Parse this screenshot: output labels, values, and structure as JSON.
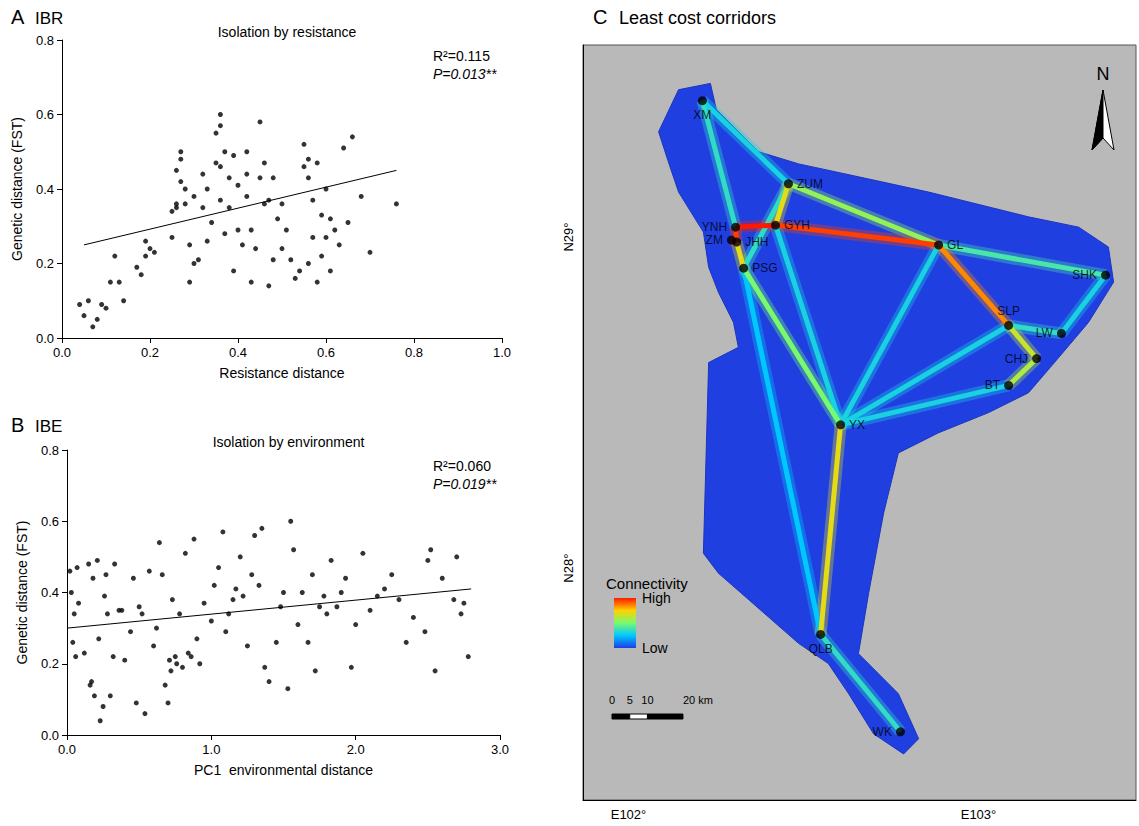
{
  "chart_data": [
    {
      "type": "scatter",
      "letter": "A",
      "heading": "IBR",
      "title": "Isolation by resistance",
      "x_label": "Resistance distance",
      "y_label": "Genetic distance (FST)",
      "color": "#000000",
      "marker": "circle",
      "annotations": [
        "R²=0.115",
        "P=0.013**"
      ],
      "xlim": [
        0,
        1
      ],
      "ylim": [
        0,
        0.8
      ],
      "xticks": [
        {
          "value": 0,
          "label": "0.0"
        },
        0.2,
        0.4,
        0.6,
        0.8,
        {
          "value": 1,
          "label": "1.0"
        }
      ],
      "yticks": [
        {
          "value": 0,
          "label": "0.0"
        },
        0.2,
        0.4,
        0.6,
        0.8
      ],
      "fit": {
        "x": [
          0.05,
          0.76
        ],
        "values": [
          0.25,
          0.45
        ]
      },
      "x": [
        0.04,
        0.05,
        0.07,
        0.06,
        0.08,
        0.09,
        0.1,
        0.11,
        0.12,
        0.13,
        0.14,
        0.17,
        0.18,
        0.19,
        0.2,
        0.21,
        0.19,
        0.25,
        0.25,
        0.26,
        0.26,
        0.27,
        0.27,
        0.27,
        0.28,
        0.28,
        0.29,
        0.29,
        0.3,
        0.3,
        0.31,
        0.32,
        0.32,
        0.33,
        0.34,
        0.35,
        0.35,
        0.36,
        0.36,
        0.36,
        0.37,
        0.37,
        0.38,
        0.38,
        0.39,
        0.4,
        0.4,
        0.41,
        0.42,
        0.42,
        0.43,
        0.43,
        0.44,
        0.45,
        0.45,
        0.46,
        0.46,
        0.47,
        0.47,
        0.48,
        0.48,
        0.49,
        0.5,
        0.5,
        0.51,
        0.52,
        0.53,
        0.54,
        0.55,
        0.55,
        0.56,
        0.56,
        0.56,
        0.57,
        0.57,
        0.58,
        0.58,
        0.59,
        0.59,
        0.6,
        0.6,
        0.61,
        0.61,
        0.62,
        0.63,
        0.64,
        0.65,
        0.66,
        0.68,
        0.7,
        0.76,
        0.42,
        0.33,
        0.39,
        0.26,
        0.36
      ],
      "values": [
        0.09,
        0.06,
        0.03,
        0.1,
        0.05,
        0.09,
        0.08,
        0.15,
        0.22,
        0.15,
        0.1,
        0.19,
        0.17,
        0.22,
        0.24,
        0.23,
        0.26,
        0.27,
        0.34,
        0.36,
        0.45,
        0.5,
        0.48,
        0.42,
        0.4,
        0.36,
        0.25,
        0.15,
        0.2,
        0.38,
        0.21,
        0.35,
        0.44,
        0.4,
        0.31,
        0.47,
        0.55,
        0.6,
        0.57,
        0.46,
        0.28,
        0.5,
        0.43,
        0.35,
        0.18,
        0.29,
        0.41,
        0.25,
        0.5,
        0.38,
        0.15,
        0.29,
        0.24,
        0.43,
        0.58,
        0.47,
        0.36,
        0.37,
        0.14,
        0.43,
        0.21,
        0.32,
        0.24,
        0.36,
        0.29,
        0.21,
        0.16,
        0.18,
        0.46,
        0.52,
        0.48,
        0.43,
        0.2,
        0.37,
        0.27,
        0.47,
        0.15,
        0.33,
        0.22,
        0.4,
        0.27,
        0.32,
        0.18,
        0.29,
        0.25,
        0.51,
        0.31,
        0.54,
        0.38,
        0.23,
        0.36,
        0.44,
        0.26,
        0.49,
        0.35,
        0.37
      ]
    },
    {
      "type": "scatter",
      "letter": "B",
      "heading": "IBE",
      "title": "Isolation by environment",
      "x_label": "PC1  environmental distance",
      "y_label": "Genetic distance (FST)",
      "color": "#000000",
      "marker": "circle",
      "annotations": [
        "R²=0.060",
        "P=0.019**"
      ],
      "xlim": [
        0,
        3
      ],
      "ylim": [
        0,
        0.8
      ],
      "xticks": [
        {
          "value": 0,
          "label": "0.0"
        },
        {
          "value": 1,
          "label": "1.0"
        },
        {
          "value": 2,
          "label": "2.0"
        },
        {
          "value": 3,
          "label": "3.0"
        }
      ],
      "yticks": [
        {
          "value": 0,
          "label": "0.0"
        },
        0.2,
        0.4,
        0.6,
        0.8
      ],
      "fit": {
        "x": [
          0,
          2.8
        ],
        "values": [
          0.3,
          0.41
        ]
      },
      "x": [
        0.02,
        0.03,
        0.04,
        0.05,
        0.06,
        0.07,
        0.08,
        0.12,
        0.15,
        0.16,
        0.17,
        0.18,
        0.19,
        0.21,
        0.22,
        0.23,
        0.25,
        0.26,
        0.27,
        0.28,
        0.3,
        0.32,
        0.33,
        0.36,
        0.38,
        0.4,
        0.44,
        0.46,
        0.48,
        0.5,
        0.52,
        0.54,
        0.57,
        0.6,
        0.62,
        0.64,
        0.66,
        0.68,
        0.7,
        0.71,
        0.72,
        0.73,
        0.75,
        0.76,
        0.78,
        0.8,
        0.82,
        0.84,
        0.86,
        0.88,
        0.9,
        0.92,
        0.95,
        1.0,
        1.02,
        1.05,
        1.08,
        1.1,
        1.12,
        1.15,
        1.17,
        1.2,
        1.22,
        1.25,
        1.28,
        1.3,
        1.33,
        1.35,
        1.37,
        1.4,
        1.45,
        1.48,
        1.5,
        1.53,
        1.55,
        1.57,
        1.6,
        1.63,
        1.67,
        1.7,
        1.72,
        1.75,
        1.78,
        1.8,
        1.83,
        1.87,
        1.9,
        1.93,
        1.97,
        2.0,
        2.05,
        2.1,
        2.15,
        2.2,
        2.25,
        2.3,
        2.35,
        2.4,
        2.48,
        2.5,
        2.52,
        2.55,
        2.6,
        2.68,
        2.7,
        2.73,
        2.75,
        2.78
      ],
      "values": [
        0.46,
        0.4,
        0.26,
        0.34,
        0.22,
        0.47,
        0.37,
        0.23,
        0.48,
        0.14,
        0.15,
        0.44,
        0.11,
        0.49,
        0.27,
        0.04,
        0.08,
        0.39,
        0.45,
        0.34,
        0.11,
        0.22,
        0.48,
        0.35,
        0.35,
        0.21,
        0.29,
        0.44,
        0.09,
        0.36,
        0.34,
        0.06,
        0.46,
        0.25,
        0.3,
        0.54,
        0.45,
        0.14,
        0.09,
        0.21,
        0.18,
        0.38,
        0.22,
        0.2,
        0.34,
        0.19,
        0.51,
        0.23,
        0.22,
        0.55,
        0.27,
        0.2,
        0.37,
        0.32,
        0.42,
        0.47,
        0.57,
        0.29,
        0.34,
        0.38,
        0.41,
        0.5,
        0.39,
        0.25,
        0.45,
        0.56,
        0.42,
        0.58,
        0.19,
        0.15,
        0.26,
        0.36,
        0.4,
        0.13,
        0.6,
        0.52,
        0.31,
        0.4,
        0.26,
        0.45,
        0.18,
        0.36,
        0.39,
        0.34,
        0.49,
        0.36,
        0.4,
        0.44,
        0.19,
        0.31,
        0.51,
        0.35,
        0.39,
        0.41,
        0.45,
        0.38,
        0.26,
        0.33,
        0.29,
        0.49,
        0.52,
        0.18,
        0.44,
        0.38,
        0.5,
        0.34,
        0.37,
        0.22
      ]
    },
    {
      "type": "map",
      "letter": "C",
      "title": "Least cost corridors",
      "xlim": [
        101.87,
        103.45
      ],
      "ylim": [
        27.3,
        29.58
      ],
      "xticks": [
        {
          "value": 102,
          "label": "E102°"
        },
        {
          "value": 103,
          "label": "E103°"
        }
      ],
      "yticks": [
        {
          "value": 28,
          "label": "N28°"
        },
        {
          "value": 29,
          "label": "N29°"
        }
      ],
      "north_label": "N",
      "scale_bar": {
        "ticks": [
          0,
          5,
          10,
          {
            "value": 20,
            "label": "20 km"
          }
        ]
      },
      "colorbar": {
        "title": "Connectivity",
        "range": [
          0,
          1
        ],
        "ticks": [
          {
            "value": 1,
            "label": "High"
          },
          {
            "value": 0,
            "label": "Low"
          }
        ]
      },
      "sites": [
        {
          "name": "XM",
          "lon": 102.211,
          "lat": 29.412
        },
        {
          "name": "ZUM",
          "lon": 102.457,
          "lat": 29.161
        },
        {
          "name": "YNH",
          "lon": 102.306,
          "lat": 29.03
        },
        {
          "name": "ZM",
          "lon": 102.294,
          "lat": 28.991
        },
        {
          "name": "JHH",
          "lon": 102.309,
          "lat": 28.985
        },
        {
          "name": "GYH",
          "lon": 102.42,
          "lat": 29.036
        },
        {
          "name": "PSG",
          "lon": 102.329,
          "lat": 28.906
        },
        {
          "name": "GL",
          "lon": 102.886,
          "lat": 28.976
        },
        {
          "name": "SHK",
          "lon": 103.363,
          "lat": 28.885
        },
        {
          "name": "SLP",
          "lon": 103.086,
          "lat": 28.733
        },
        {
          "name": "LW",
          "lon": 103.237,
          "lat": 28.709
        },
        {
          "name": "CHJ",
          "lon": 103.166,
          "lat": 28.633
        },
        {
          "name": "BT",
          "lon": 103.086,
          "lat": 28.552
        },
        {
          "name": "YX",
          "lon": 102.606,
          "lat": 28.433
        },
        {
          "name": "QLB",
          "lon": 102.549,
          "lat": 27.8
        },
        {
          "name": "WK",
          "lon": 102.777,
          "lat": 27.506
        }
      ],
      "corridors": [
        {
          "from": "PSG",
          "to": "QLB",
          "connectivity": 0.25
        },
        {
          "from": "ZUM",
          "to": "XM",
          "connectivity": 0.3
        },
        {
          "from": "LW",
          "to": "SHK",
          "connectivity": 0.3
        },
        {
          "from": "BT",
          "to": "YX",
          "connectivity": 0.3
        },
        {
          "from": "SLP",
          "to": "YX",
          "connectivity": 0.3
        },
        {
          "from": "GL",
          "to": "YX",
          "connectivity": 0.3
        },
        {
          "from": "GYH",
          "to": "YX",
          "connectivity": 0.3
        },
        {
          "from": "XM",
          "to": "YNH",
          "connectivity": 0.35
        },
        {
          "from": "QLB",
          "to": "WK",
          "connectivity": 0.35
        },
        {
          "from": "SLP",
          "to": "LW",
          "connectivity": 0.35
        },
        {
          "from": "ZUM",
          "to": "PSG",
          "connectivity": 0.35
        },
        {
          "from": "GL",
          "to": "SHK",
          "connectivity": 0.4
        },
        {
          "from": "PSG",
          "to": "YX",
          "connectivity": 0.5
        },
        {
          "from": "ZUM",
          "to": "GL",
          "connectivity": 0.55
        },
        {
          "from": "CHJ",
          "to": "BT",
          "connectivity": 0.6
        },
        {
          "from": "SLP",
          "to": "CHJ",
          "connectivity": 0.65
        },
        {
          "from": "GYH",
          "to": "ZUM",
          "connectivity": 0.7
        },
        {
          "from": "JHH",
          "to": "PSG",
          "connectivity": 0.7
        },
        {
          "from": "YX",
          "to": "QLB",
          "connectivity": 0.7
        },
        {
          "from": "GL",
          "to": "SLP",
          "connectivity": 0.85
        },
        {
          "from": "ZM",
          "to": "JHH",
          "connectivity": 0.95
        },
        {
          "from": "JHH",
          "to": "YNH",
          "connectivity": 0.95
        },
        {
          "from": "GYH",
          "to": "GL",
          "connectivity": 0.95
        },
        {
          "from": "YNH",
          "to": "GYH",
          "connectivity": 1.0
        }
      ],
      "study_area": [
        [
          102.143,
          29.445
        ],
        [
          102.234,
          29.464
        ],
        [
          102.251,
          29.385
        ],
        [
          102.371,
          29.258
        ],
        [
          102.486,
          29.221
        ],
        [
          102.657,
          29.182
        ],
        [
          102.857,
          29.136
        ],
        [
          103.029,
          29.091
        ],
        [
          103.143,
          29.061
        ],
        [
          103.286,
          29.03
        ],
        [
          103.371,
          28.97
        ],
        [
          103.386,
          28.864
        ],
        [
          103.314,
          28.742
        ],
        [
          103.229,
          28.636
        ],
        [
          103.143,
          28.53
        ],
        [
          103.029,
          28.47
        ],
        [
          102.886,
          28.409
        ],
        [
          102.771,
          28.348
        ],
        [
          102.729,
          28.167
        ],
        [
          102.686,
          27.924
        ],
        [
          102.657,
          27.742
        ],
        [
          102.771,
          27.621
        ],
        [
          102.829,
          27.485
        ],
        [
          102.786,
          27.439
        ],
        [
          102.7,
          27.5
        ],
        [
          102.629,
          27.621
        ],
        [
          102.571,
          27.712
        ],
        [
          102.486,
          27.773
        ],
        [
          102.257,
          27.985
        ],
        [
          102.214,
          28.045
        ],
        [
          102.229,
          28.621
        ],
        [
          102.314,
          28.667
        ],
        [
          102.3,
          28.742
        ],
        [
          102.257,
          28.833
        ],
        [
          102.229,
          28.909
        ],
        [
          102.214,
          29.015
        ],
        [
          102.143,
          29.136
        ],
        [
          102.114,
          29.227
        ],
        [
          102.086,
          29.318
        ]
      ]
    }
  ]
}
